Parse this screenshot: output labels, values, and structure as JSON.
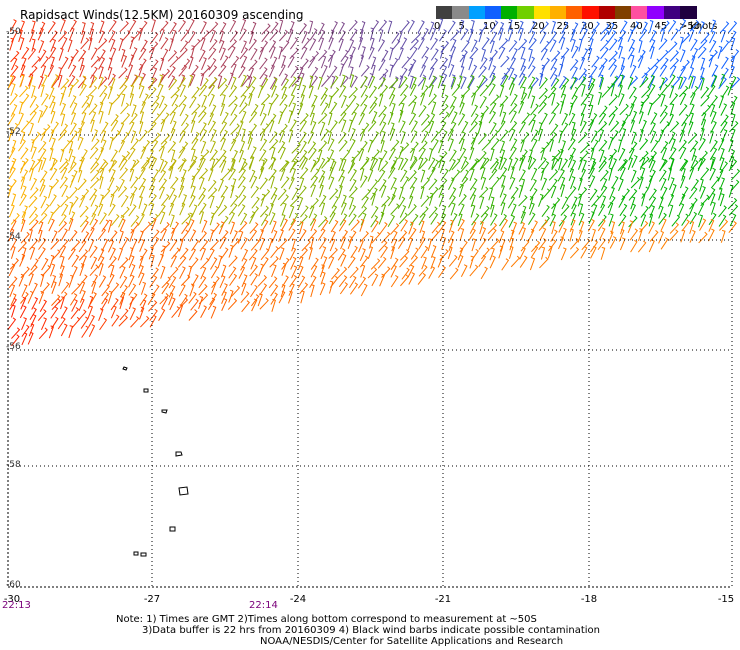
{
  "title": "Rapidsact Winds(12.5KM) 20160309 ascending",
  "legend": {
    "colors": [
      "#404040",
      "#8a8a8a",
      "#00a0ff",
      "#1060ff",
      "#00b000",
      "#70d000",
      "#ffe000",
      "#ffb000",
      "#ff6000",
      "#ff1000",
      "#b00000",
      "#804000",
      "#ff50a0",
      "#9000ff",
      "#400080",
      "#200040"
    ],
    "labels": [
      "0",
      "5",
      "10",
      "15",
      "20",
      "25",
      "30",
      "35",
      "40",
      "45",
      ">50"
    ],
    "units": "knots"
  },
  "axes": {
    "y_labels": [
      "-50",
      "-52",
      "-54",
      "-56",
      "-58",
      "-60"
    ],
    "x_labels": [
      "-30",
      "-27",
      "-24",
      "-21",
      "-18",
      "-15"
    ],
    "time_labels": [
      "22:13",
      "22:14"
    ]
  },
  "notes": [
    "Note: 1) Times are GMT 2)Times along bottom correspond to measurement at ~50S",
    "3)Data buffer is 22 hrs from 20160309 4) Black wind barbs indicate possible contamination",
    "NOAA/NESDIS/Center for Satellite Applications and Research"
  ],
  "map": {
    "lon_range": [
      -30,
      -15
    ],
    "lat_range": [
      -60,
      -50
    ],
    "swath_color_bands": [
      {
        "lat_top": -50.0,
        "lat_bottom": -51.0,
        "west": "#ff3000",
        "east": "#1060ff"
      },
      {
        "lat_top": -51.0,
        "lat_bottom": -52.5,
        "west": "#ffb000",
        "east": "#00b000"
      },
      {
        "lat_top": -52.5,
        "lat_bottom": -53.6,
        "west": "#ffb000",
        "east": "#00b000"
      },
      {
        "lat_top": -53.6,
        "lat_bottom": -55.0,
        "west": "#ff6000",
        "east": "#ff8000"
      },
      {
        "lat_top": -55.0,
        "lat_bottom": -56.0,
        "west": "#ff2000",
        "east": "#ffe000"
      }
    ]
  }
}
